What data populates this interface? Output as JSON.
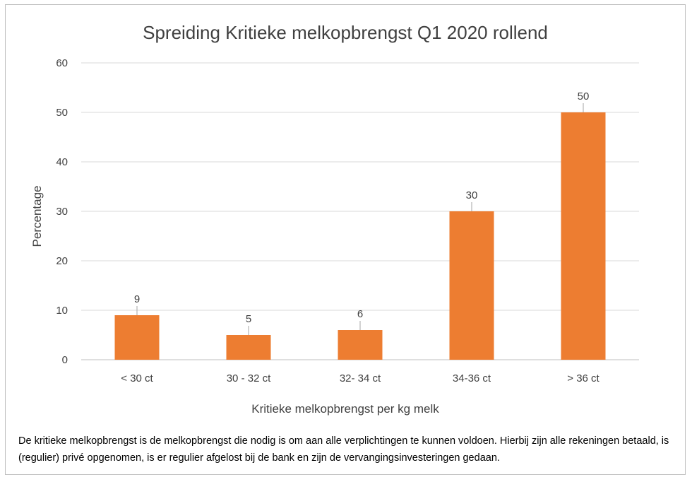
{
  "chart_data": {
    "type": "bar",
    "title": "Spreiding Kritieke melkopbrengst Q1 2020 rollend",
    "xlabel": "Kritieke melkopbrengst per kg melk",
    "ylabel": "Percentage",
    "categories": [
      "< 30 ct",
      "30 - 32 ct",
      "32- 34 ct",
      "34-36 ct",
      "> 36 ct"
    ],
    "values": [
      9,
      5,
      6,
      30,
      50
    ],
    "data_labels": [
      "9",
      "5",
      "6",
      "30",
      "50"
    ],
    "ylim": [
      0,
      60
    ],
    "yticks": [
      0,
      10,
      20,
      30,
      40,
      50,
      60
    ],
    "grid": true,
    "legend": "none",
    "bar_color": "#ED7D31"
  },
  "footnote": "De kritieke melkopbrengst is de melkopbrengst die nodig is om aan alle verplichtingen te kunnen voldoen. Hierbij zijn alle rekeningen betaald, is (regulier) privé opgenomen, is er regulier afgelost bij de bank en zijn de vervangingsinvesteringen gedaan."
}
